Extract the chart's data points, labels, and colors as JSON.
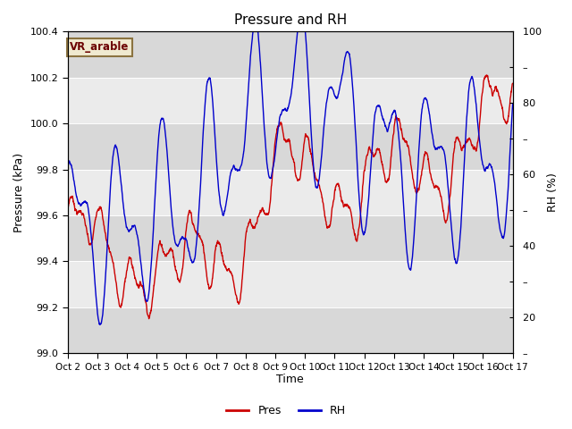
{
  "title": "Pressure and RH",
  "xlabel": "Time",
  "ylabel_left": "Pressure (kPa)",
  "ylabel_right": "RH (%)",
  "legend_label": "VR_arable",
  "pres_label": "Pres",
  "rh_label": "RH",
  "pres_color": "#cc0000",
  "rh_color": "#0000cc",
  "ylim_left": [
    99.0,
    100.4
  ],
  "ylim_right": [
    10,
    100
  ],
  "yticks_left": [
    99.0,
    99.2,
    99.4,
    99.6,
    99.8,
    100.0,
    100.2,
    100.4
  ],
  "yticks_right": [
    10,
    20,
    30,
    40,
    50,
    60,
    70,
    80,
    90,
    100
  ],
  "background_color": "#ffffff",
  "plot_bg_color": "#ebebeb",
  "band_light_color": "#d8d8d8",
  "num_days": 15,
  "seed": 99
}
